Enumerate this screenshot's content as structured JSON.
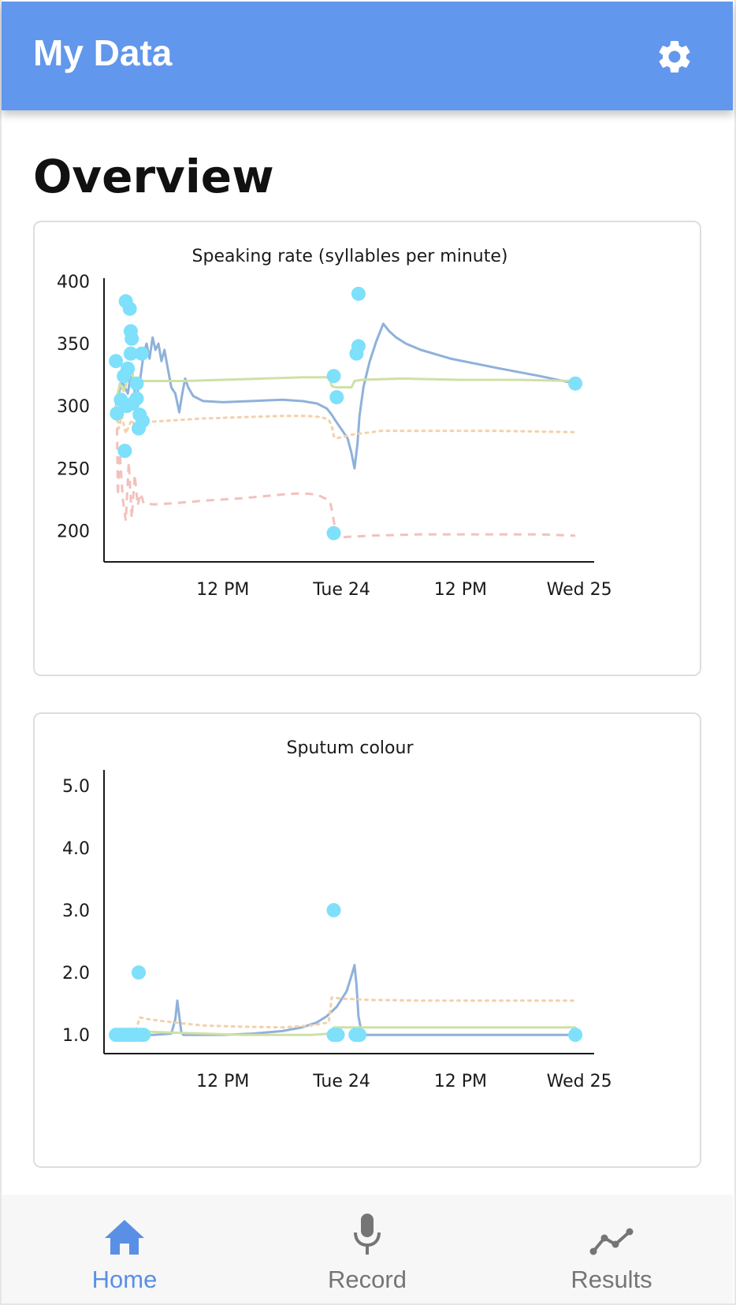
{
  "app": {
    "title": "My Data"
  },
  "page": {
    "title": "Overview"
  },
  "colors": {
    "appbar": "#6197ec",
    "accent": "#5a8fe6",
    "points": "#7ee0fa",
    "blue_line": "#8fb1d9",
    "green_line": "#cfe0a8",
    "orange_dotted": "#f3d1ab",
    "red_dashed": "#f2c1bd"
  },
  "icons": {
    "settings": "gear-icon",
    "home": "home-icon",
    "record": "microphone-icon",
    "results": "trend-line-icon"
  },
  "nav": {
    "items": [
      {
        "label": "Home",
        "icon": "home-icon",
        "active": true
      },
      {
        "label": "Record",
        "icon": "microphone-icon",
        "active": false
      },
      {
        "label": "Results",
        "icon": "trend-line-icon",
        "active": false
      }
    ]
  },
  "chart_data": [
    {
      "type": "scatter",
      "title": "Speaking rate (syllables per minute)",
      "xlabel": "",
      "ylabel": "",
      "x_unit": "hours",
      "x_ticks": [
        {
          "x": 12,
          "label": "12 PM"
        },
        {
          "x": 24,
          "label": "Tue 24"
        },
        {
          "x": 36,
          "label": "12 PM"
        },
        {
          "x": 48,
          "label": "Wed 25"
        }
      ],
      "xlim": [
        0,
        49.5
      ],
      "ylim": [
        180,
        400
      ],
      "y_ticks": [
        200,
        250,
        300,
        350,
        400
      ],
      "y_tick_labels": [
        "200",
        "250",
        "300",
        "350",
        "400"
      ],
      "grid": false,
      "points": [
        {
          "x": 1.2,
          "y": 336
        },
        {
          "x": 1.3,
          "y": 294
        },
        {
          "x": 1.7,
          "y": 305
        },
        {
          "x": 2.0,
          "y": 324
        },
        {
          "x": 2.1,
          "y": 264
        },
        {
          "x": 2.2,
          "y": 384
        },
        {
          "x": 2.3,
          "y": 300
        },
        {
          "x": 2.4,
          "y": 330
        },
        {
          "x": 2.6,
          "y": 378
        },
        {
          "x": 2.7,
          "y": 360
        },
        {
          "x": 2.7,
          "y": 342
        },
        {
          "x": 2.8,
          "y": 354
        },
        {
          "x": 2.9,
          "y": 302
        },
        {
          "x": 3.3,
          "y": 318
        },
        {
          "x": 3.3,
          "y": 306
        },
        {
          "x": 3.5,
          "y": 282
        },
        {
          "x": 3.6,
          "y": 293
        },
        {
          "x": 3.8,
          "y": 342
        },
        {
          "x": 3.9,
          "y": 288
        },
        {
          "x": 23.2,
          "y": 324
        },
        {
          "x": 23.5,
          "y": 307
        },
        {
          "x": 23.2,
          "y": 198
        },
        {
          "x": 25.5,
          "y": 342
        },
        {
          "x": 25.7,
          "y": 348
        },
        {
          "x": 25.7,
          "y": 390
        },
        {
          "x": 47.6,
          "y": 318
        }
      ],
      "series": [
        {
          "style": "solid",
          "color": "#8fb1d9",
          "x": [
            1.2,
            1.8,
            2.4,
            2.8,
            3.2,
            3.6,
            4.0,
            4.3,
            4.6,
            4.9,
            5.2,
            5.5,
            5.8,
            6.1,
            6.4,
            6.8,
            7.2,
            7.6,
            7.9,
            8.2,
            8.5,
            9.0,
            10.0,
            12.0,
            15.0,
            18.0,
            20.0,
            21.5,
            22.5,
            23.0,
            23.4,
            24.0,
            24.6,
            25.0,
            25.3,
            25.6,
            25.8,
            26.2,
            26.8,
            27.5,
            28.2,
            28.8,
            29.5,
            30.5,
            32.0,
            35.0,
            40.0,
            44.0,
            47.6
          ],
          "y": [
            300,
            320,
            310,
            330,
            305,
            318,
            342,
            350,
            338,
            355,
            345,
            350,
            336,
            345,
            332,
            315,
            310,
            295,
            310,
            322,
            315,
            308,
            304,
            303,
            304,
            305,
            304,
            302,
            298,
            293,
            288,
            281,
            274,
            262,
            250,
            270,
            292,
            315,
            335,
            352,
            366,
            360,
            355,
            350,
            345,
            338,
            330,
            324,
            318
          ]
        },
        {
          "style": "solid",
          "color": "#cfe0a8",
          "x": [
            1.2,
            1.6,
            2.0,
            2.4,
            2.8,
            3.2,
            3.8,
            5.0,
            8.0,
            12.0,
            16.0,
            20.0,
            22.8,
            23.0,
            23.4,
            24.5,
            25.0,
            25.3,
            26.0,
            30.0,
            36.0,
            42.0,
            47.6
          ],
          "y": [
            303,
            318,
            312,
            322,
            326,
            318,
            320,
            320,
            320,
            321,
            322,
            323,
            323,
            316,
            315,
            315,
            315,
            320,
            321,
            322,
            321,
            321,
            320
          ]
        },
        {
          "style": "dotted",
          "color": "#f3d1ab",
          "x": [
            1.2,
            1.5,
            1.8,
            2.2,
            2.8,
            3.3,
            4.0,
            6.0,
            10.0,
            14.0,
            18.0,
            20.5,
            22.0,
            22.7,
            23.0,
            23.2,
            23.4,
            24.0,
            25.0,
            28.0,
            34.0,
            40.0,
            47.6
          ],
          "y": [
            300,
            282,
            292,
            278,
            289,
            281,
            287,
            288,
            290,
            291,
            292,
            292,
            291,
            289,
            284,
            276,
            274,
            275,
            277,
            280,
            280,
            280,
            279
          ]
        },
        {
          "style": "dashed",
          "color": "#f2c1bd",
          "x": [
            1.3,
            1.4,
            1.6,
            1.9,
            2.2,
            2.5,
            2.8,
            3.1,
            3.4,
            3.7,
            4.0,
            5.0,
            7.0,
            10.0,
            14.0,
            18.0,
            20.0,
            21.5,
            22.8,
            23.0,
            23.2,
            23.5,
            24.5,
            27.0,
            32.0,
            38.0,
            44.0,
            47.6
          ],
          "y": [
            294,
            228,
            262,
            225,
            208,
            255,
            210,
            245,
            220,
            230,
            222,
            221,
            222,
            224,
            226,
            229,
            230,
            229,
            224,
            217,
            208,
            194,
            195,
            196,
            197,
            197,
            197,
            196
          ]
        }
      ]
    },
    {
      "type": "scatter",
      "title": "Sputum colour",
      "xlabel": "",
      "ylabel": "",
      "x_unit": "hours",
      "x_ticks": [
        {
          "x": 12,
          "label": "12 PM"
        },
        {
          "x": 24,
          "label": "Tue 24"
        },
        {
          "x": 36,
          "label": "12 PM"
        },
        {
          "x": 48,
          "label": "Wed 25"
        }
      ],
      "xlim": [
        0,
        49.5
      ],
      "ylim": [
        0.8,
        5.2
      ],
      "y_ticks": [
        1,
        2,
        3,
        4,
        5
      ],
      "y_tick_labels": [
        "1.0",
        "2.0",
        "3.0",
        "4.0",
        "5.0"
      ],
      "grid": false,
      "points": [
        {
          "x": 1.2,
          "y": 1.0
        },
        {
          "x": 1.6,
          "y": 1.0
        },
        {
          "x": 2.0,
          "y": 1.0
        },
        {
          "x": 2.4,
          "y": 1.0
        },
        {
          "x": 2.8,
          "y": 1.0
        },
        {
          "x": 3.2,
          "y": 1.0
        },
        {
          "x": 3.5,
          "y": 2.0
        },
        {
          "x": 3.7,
          "y": 1.0
        },
        {
          "x": 4.0,
          "y": 1.0
        },
        {
          "x": 23.2,
          "y": 3.0
        },
        {
          "x": 23.2,
          "y": 1.0
        },
        {
          "x": 23.6,
          "y": 1.0
        },
        {
          "x": 25.4,
          "y": 1.0
        },
        {
          "x": 25.8,
          "y": 1.0
        },
        {
          "x": 47.6,
          "y": 1.0
        }
      ],
      "series": [
        {
          "style": "solid",
          "color": "#8fb1d9",
          "x": [
            1.2,
            3.0,
            5.0,
            6.8,
            7.2,
            7.4,
            7.6,
            7.8,
            8.0,
            9.0,
            12.0,
            15.0,
            18.0,
            20.0,
            21.5,
            22.5,
            23.5,
            24.5,
            25.0,
            25.3,
            25.5,
            25.7,
            26.0,
            26.5,
            28.0,
            32.0,
            40.0,
            47.6
          ],
          "y": [
            1.0,
            1.0,
            1.0,
            1.02,
            1.25,
            1.55,
            1.3,
            1.05,
            1.0,
            1.0,
            1.0,
            1.02,
            1.06,
            1.12,
            1.2,
            1.3,
            1.45,
            1.7,
            1.95,
            2.12,
            1.8,
            1.3,
            1.05,
            1.0,
            1.0,
            1.0,
            1.0,
            1.0
          ]
        },
        {
          "style": "solid",
          "color": "#cfe0a8",
          "x": [
            1.2,
            3.0,
            6.0,
            10.0,
            14.0,
            18.0,
            21.0,
            22.8,
            23.2,
            26.0,
            32.0,
            40.0,
            47.6
          ],
          "y": [
            1.08,
            1.06,
            1.04,
            1.02,
            1.0,
            1.0,
            1.0,
            1.02,
            1.12,
            1.12,
            1.12,
            1.12,
            1.12
          ]
        },
        {
          "style": "dotted",
          "color": "#f3d1ab",
          "x": [
            1.2,
            3.2,
            3.6,
            4.5,
            7.0,
            10.0,
            14.0,
            18.0,
            21.0,
            22.7,
            23.0,
            24.0,
            27.0,
            32.0,
            40.0,
            47.6
          ],
          "y": [
            1.0,
            1.05,
            1.28,
            1.25,
            1.2,
            1.15,
            1.13,
            1.12,
            1.15,
            1.2,
            1.6,
            1.58,
            1.56,
            1.55,
            1.55,
            1.55
          ]
        }
      ]
    }
  ]
}
